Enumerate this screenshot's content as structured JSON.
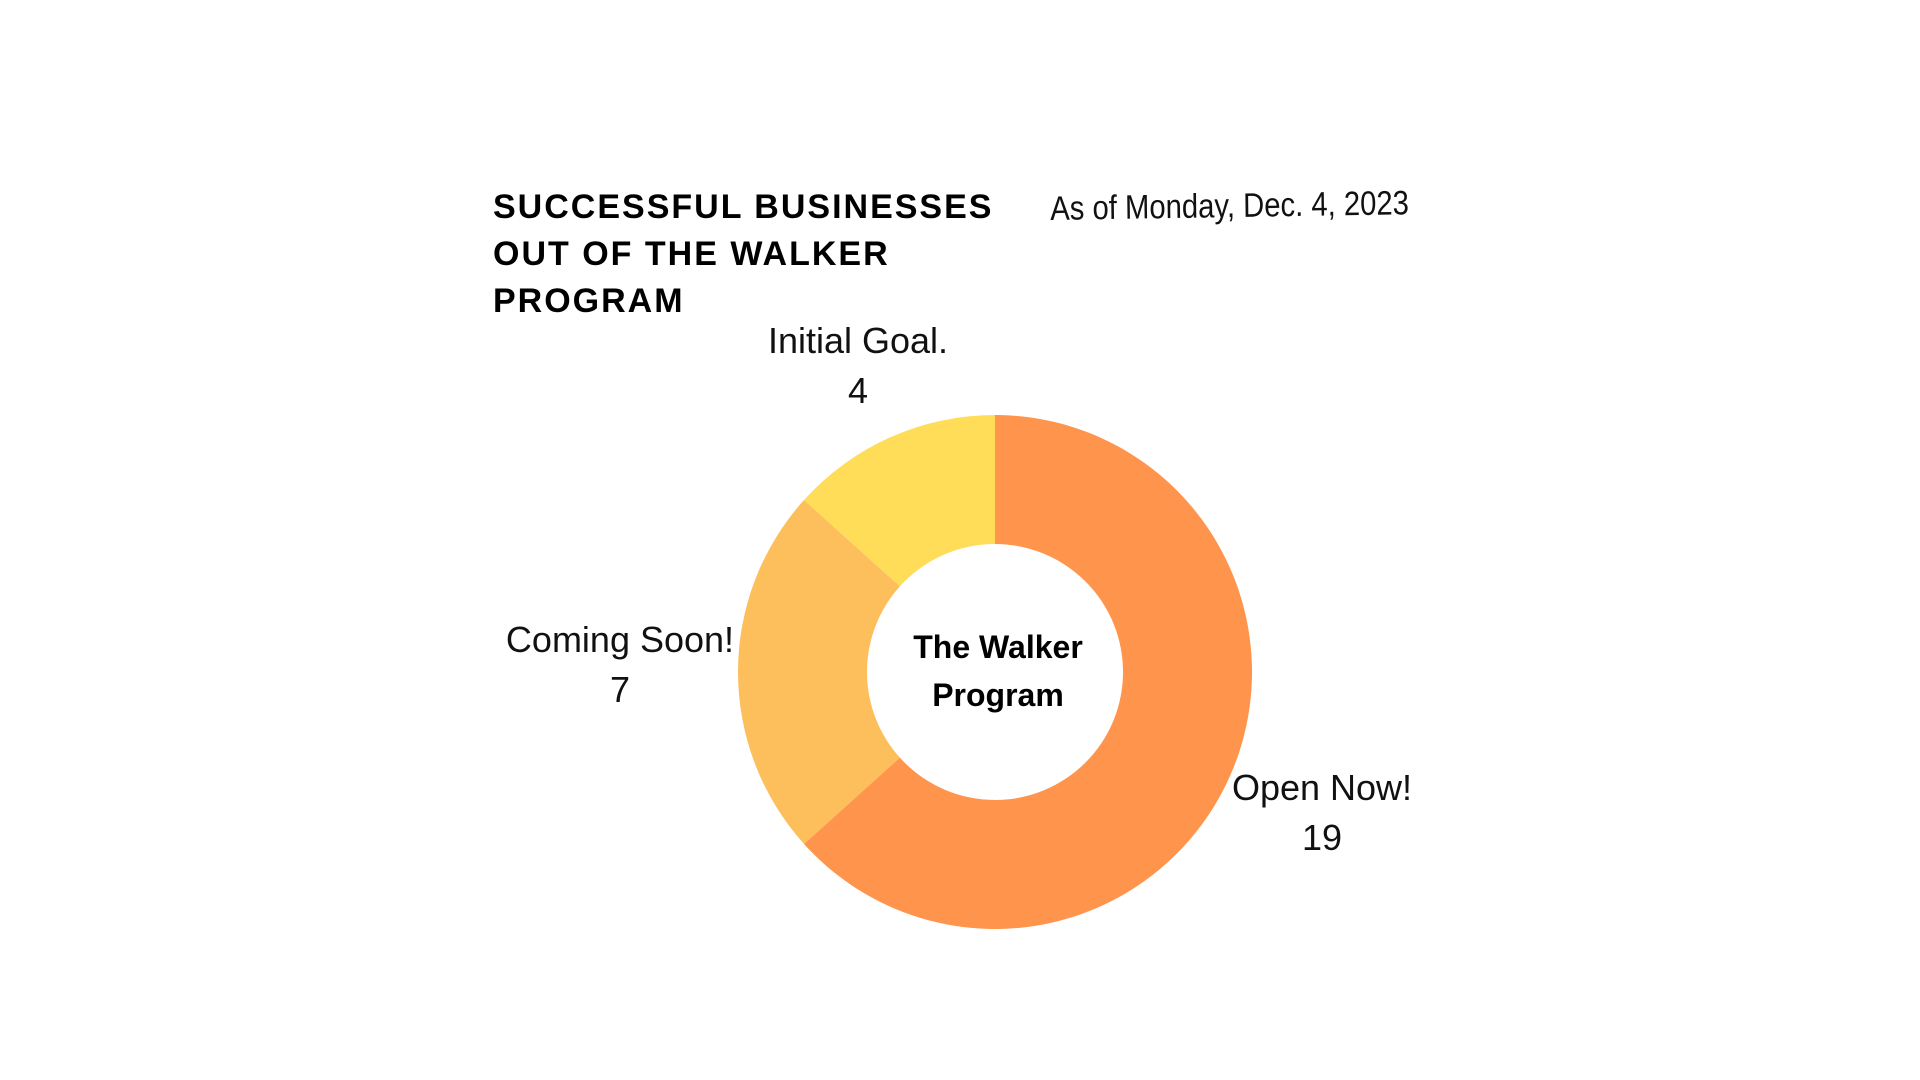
{
  "title": "SUCCESSFUL BUSINESSES OUT OF THE WALKER PROGRAM",
  "subtitle": "As of Monday, Dec. 4, 2023",
  "chart_data": {
    "type": "pie",
    "donut": true,
    "title": "SUCCESSFUL BUSINESSES OUT OF THE WALKER PROGRAM",
    "subtitle": "As of Monday, Dec. 4, 2023",
    "center_label": [
      "The Walker",
      "Program"
    ],
    "slices": [
      {
        "label": "Open Now!",
        "value": 19,
        "color": "#FF944C"
      },
      {
        "label": "Coming Soon!",
        "value": 7,
        "color": "#FDBE5C"
      },
      {
        "label": "Initial Goal.",
        "value": 4,
        "color": "#FFDD59"
      }
    ],
    "legend": "none"
  }
}
